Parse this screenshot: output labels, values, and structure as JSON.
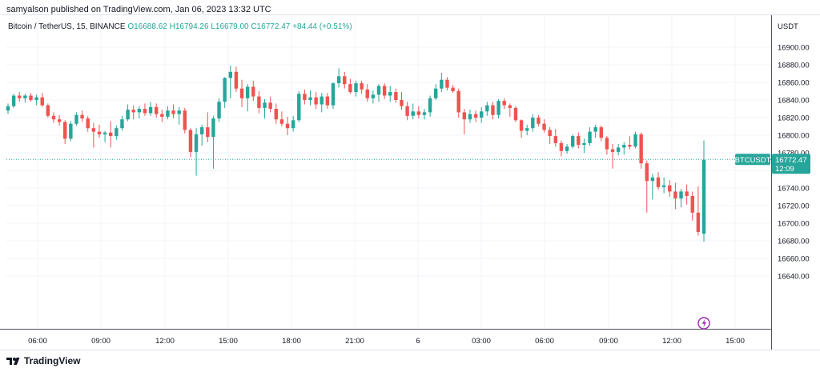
{
  "publish_line": "samyalson published on TradingView.com, Jan 06, 2023 13:32 UTC",
  "legend": {
    "symbol": "Bitcoin / TetherUS, 15, BINANCE",
    "open": "O16688.62",
    "high": "H16794.26",
    "low": "L16679.00",
    "close": "C16772.47",
    "change": "+84.44 (+0.51%)"
  },
  "price_axis": {
    "currency": "USDT",
    "ticks": [
      "16900.00",
      "16880.00",
      "16860.00",
      "16840.00",
      "16820.00",
      "16800.00",
      "16780.00",
      "16760.00",
      "16740.00",
      "16720.00",
      "16700.00",
      "16680.00",
      "16660.00",
      "16640.00"
    ]
  },
  "time_axis": {
    "ticks": [
      "06:00",
      "09:00",
      "12:00",
      "15:00",
      "18:00",
      "21:00",
      "6",
      "03:00",
      "06:00",
      "09:00",
      "12:00",
      "15:00"
    ]
  },
  "last_price": {
    "symbol_tag": "BTCUSDT",
    "price": "16772.47",
    "countdown": "12:09"
  },
  "brand": "TradingView",
  "colors": {
    "up": "#26a69a",
    "down": "#ef5350",
    "grid": "#f0f3fa",
    "axis_text": "#131722",
    "event_icon": "#9c27b0"
  },
  "chart_data": {
    "type": "candlestick",
    "title": "Bitcoin / TetherUS, 15, BINANCE",
    "ylabel": "USDT",
    "ylim": [
      16630,
      16920
    ],
    "x_labels": [
      "06:00",
      "09:00",
      "12:00",
      "15:00",
      "18:00",
      "21:00",
      "6",
      "03:00",
      "06:00",
      "09:00",
      "12:00",
      "15:00"
    ],
    "candles": [
      [
        16828,
        16836,
        16824,
        16833
      ],
      [
        16833,
        16847,
        16831,
        16845
      ],
      [
        16845,
        16849,
        16838,
        16842
      ],
      [
        16842,
        16847,
        16837,
        16845
      ],
      [
        16845,
        16848,
        16838,
        16840
      ],
      [
        16840,
        16846,
        16834,
        16843
      ],
      [
        16843,
        16848,
        16832,
        16834
      ],
      [
        16834,
        16836,
        16820,
        16822
      ],
      [
        16822,
        16826,
        16814,
        16818
      ],
      [
        16818,
        16823,
        16811,
        16815
      ],
      [
        16815,
        16817,
        16790,
        16796
      ],
      [
        16796,
        16816,
        16793,
        16813
      ],
      [
        16813,
        16826,
        16811,
        16823
      ],
      [
        16823,
        16828,
        16815,
        16819
      ],
      [
        16819,
        16822,
        16804,
        16808
      ],
      [
        16808,
        16814,
        16786,
        16804
      ],
      [
        16804,
        16812,
        16797,
        16801
      ],
      [
        16801,
        16805,
        16792,
        16803
      ],
      [
        16803,
        16816,
        16786,
        16799
      ],
      [
        16799,
        16811,
        16795,
        16808
      ],
      [
        16808,
        16822,
        16805,
        16818
      ],
      [
        16818,
        16835,
        16816,
        16829
      ],
      [
        16829,
        16834,
        16818,
        16826
      ],
      [
        16826,
        16833,
        16819,
        16830
      ],
      [
        16830,
        16836,
        16822,
        16825
      ],
      [
        16825,
        16838,
        16822,
        16832
      ],
      [
        16832,
        16836,
        16820,
        16824
      ],
      [
        16824,
        16829,
        16815,
        16821
      ],
      [
        16821,
        16833,
        16818,
        16828
      ],
      [
        16828,
        16835,
        16819,
        16824
      ],
      [
        16824,
        16832,
        16812,
        16828
      ],
      [
        16828,
        16831,
        16802,
        16806
      ],
      [
        16806,
        16808,
        16775,
        16781
      ],
      [
        16781,
        16808,
        16754,
        16801
      ],
      [
        16801,
        16812,
        16788,
        16809
      ],
      [
        16809,
        16826,
        16792,
        16798
      ],
      [
        16798,
        16822,
        16762,
        16819
      ],
      [
        16819,
        16842,
        16815,
        16838
      ],
      [
        16838,
        16866,
        16831,
        16865
      ],
      [
        16865,
        16879,
        16842,
        16872
      ],
      [
        16872,
        16878,
        16849,
        16853
      ],
      [
        16853,
        16863,
        16832,
        16842
      ],
      [
        16842,
        16858,
        16827,
        16855
      ],
      [
        16855,
        16862,
        16839,
        16844
      ],
      [
        16844,
        16850,
        16825,
        16831
      ],
      [
        16831,
        16841,
        16819,
        16837
      ],
      [
        16837,
        16844,
        16826,
        16830
      ],
      [
        16830,
        16836,
        16813,
        16818
      ],
      [
        16818,
        16827,
        16810,
        16813
      ],
      [
        16813,
        16821,
        16800,
        16808
      ],
      [
        16808,
        16822,
        16804,
        16817
      ],
      [
        16817,
        16850,
        16815,
        16847
      ],
      [
        16847,
        16852,
        16835,
        16840
      ],
      [
        16840,
        16851,
        16834,
        16843
      ],
      [
        16843,
        16849,
        16830,
        16835
      ],
      [
        16835,
        16848,
        16826,
        16844
      ],
      [
        16844,
        16848,
        16830,
        16834
      ],
      [
        16834,
        16860,
        16830,
        16859
      ],
      [
        16859,
        16876,
        16854,
        16867
      ],
      [
        16867,
        16872,
        16853,
        16858
      ],
      [
        16858,
        16864,
        16847,
        16849
      ],
      [
        16849,
        16862,
        16844,
        16859
      ],
      [
        16859,
        16862,
        16847,
        16852
      ],
      [
        16852,
        16858,
        16838,
        16842
      ],
      [
        16842,
        16851,
        16836,
        16846
      ],
      [
        16846,
        16858,
        16838,
        16856
      ],
      [
        16856,
        16859,
        16841,
        16845
      ],
      [
        16845,
        16856,
        16838,
        16849
      ],
      [
        16849,
        16853,
        16837,
        16840
      ],
      [
        16840,
        16849,
        16829,
        16833
      ],
      [
        16833,
        16838,
        16817,
        16822
      ],
      [
        16822,
        16836,
        16818,
        16827
      ],
      [
        16827,
        16833,
        16819,
        16823
      ],
      [
        16823,
        16830,
        16818,
        16826
      ],
      [
        16826,
        16845,
        16821,
        16842
      ],
      [
        16842,
        16858,
        16840,
        16853
      ],
      [
        16853,
        16871,
        16849,
        16863
      ],
      [
        16863,
        16866,
        16851,
        16854
      ],
      [
        16854,
        16857,
        16848,
        16850
      ],
      [
        16850,
        16853,
        16820,
        16826
      ],
      [
        16826,
        16830,
        16801,
        16818
      ],
      [
        16818,
        16829,
        16814,
        16824
      ],
      [
        16824,
        16828,
        16815,
        16820
      ],
      [
        16820,
        16832,
        16814,
        16827
      ],
      [
        16827,
        16838,
        16822,
        16834
      ],
      [
        16834,
        16838,
        16818,
        16823
      ],
      [
        16823,
        16841,
        16819,
        16839
      ],
      [
        16839,
        16842,
        16830,
        16834
      ],
      [
        16834,
        16836,
        16821,
        16831
      ],
      [
        16831,
        16833,
        16815,
        16817
      ],
      [
        16817,
        16818,
        16797,
        16805
      ],
      [
        16805,
        16812,
        16800,
        16808
      ],
      [
        16808,
        16824,
        16804,
        16820
      ],
      [
        16820,
        16823,
        16810,
        16813
      ],
      [
        16813,
        16818,
        16803,
        16806
      ],
      [
        16806,
        16809,
        16790,
        16799
      ],
      [
        16799,
        16807,
        16787,
        16791
      ],
      [
        16791,
        16794,
        16776,
        16782
      ],
      [
        16782,
        16790,
        16779,
        16787
      ],
      [
        16787,
        16801,
        16785,
        16799
      ],
      [
        16799,
        16803,
        16785,
        16789
      ],
      [
        16789,
        16796,
        16780,
        16791
      ],
      [
        16791,
        16809,
        16788,
        16804
      ],
      [
        16804,
        16812,
        16797,
        16809
      ],
      [
        16809,
        16811,
        16793,
        16797
      ],
      [
        16797,
        16799,
        16778,
        16784
      ],
      [
        16784,
        16790,
        16762,
        16781
      ],
      [
        16781,
        16790,
        16777,
        16786
      ],
      [
        16786,
        16792,
        16778,
        16789
      ],
      [
        16789,
        16799,
        16784,
        16787
      ],
      [
        16787,
        16804,
        16785,
        16801
      ],
      [
        16801,
        16803,
        16762,
        16768
      ],
      [
        16768,
        16771,
        16712,
        16748
      ],
      [
        16748,
        16756,
        16727,
        16752
      ],
      [
        16752,
        16758,
        16738,
        16741
      ],
      [
        16741,
        16752,
        16734,
        16743
      ],
      [
        16743,
        16749,
        16730,
        16736
      ],
      [
        16736,
        16746,
        16716,
        16728
      ],
      [
        16728,
        16739,
        16718,
        16736
      ],
      [
        16736,
        16744,
        16721,
        16731
      ],
      [
        16731,
        16736,
        16703,
        16712
      ],
      [
        16712,
        16742,
        16686,
        16690
      ],
      [
        16688,
        16794,
        16679,
        16772
      ]
    ]
  }
}
